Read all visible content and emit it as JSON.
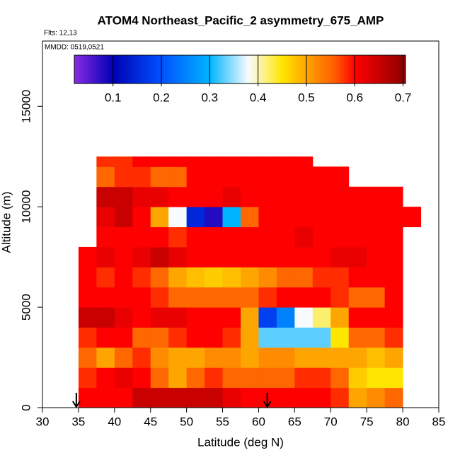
{
  "chart_data": {
    "type": "heatmap",
    "title": "ATOM4 Northeast_Pacific_2 asymmetry_675_AMP",
    "flights_label": "Flts: 12,13",
    "dates_label": "MMDD: 0519,0521",
    "x_label": "Latitude (deg N)",
    "y_label": "Altitude (m)",
    "xlim": [
      30,
      85
    ],
    "ylim": [
      0,
      18250
    ],
    "xticks": [
      30,
      35,
      40,
      45,
      50,
      55,
      60,
      65,
      70,
      75,
      80,
      85
    ],
    "yticks": [
      0,
      5000,
      10000,
      15000
    ],
    "x_edges": [
      35,
      37.5,
      40,
      42.5,
      45,
      47.5,
      50,
      52.5,
      55,
      57.5,
      60,
      62.5,
      65,
      67.5,
      70,
      72.5,
      75,
      77.5,
      80,
      82.5
    ],
    "y_edges": [
      0,
      1000,
      2000,
      3000,
      4000,
      5000,
      6000,
      7000,
      8000,
      9000,
      10000,
      11000,
      12000,
      12500
    ],
    "z": [
      [
        0.6,
        0.6,
        0.6,
        0.65,
        0.65,
        0.65,
        0.65,
        0.65,
        0.62,
        0.6,
        0.6,
        0.6,
        0.6,
        0.6,
        0.58,
        0.5,
        0.52,
        0.55,
        null
      ],
      [
        0.58,
        0.6,
        0.62,
        0.6,
        0.55,
        0.5,
        0.55,
        0.58,
        0.55,
        0.55,
        0.55,
        0.55,
        0.58,
        0.58,
        0.55,
        0.47,
        0.45,
        0.45,
        null
      ],
      [
        0.55,
        0.5,
        0.55,
        0.58,
        0.52,
        0.5,
        0.5,
        0.52,
        0.52,
        0.5,
        0.52,
        0.52,
        0.5,
        0.5,
        0.5,
        0.5,
        0.48,
        0.5,
        null
      ],
      [
        0.58,
        0.6,
        0.6,
        0.55,
        0.55,
        0.58,
        0.6,
        0.6,
        0.58,
        0.5,
        0.33,
        0.33,
        0.33,
        0.33,
        0.45,
        0.55,
        0.55,
        0.58,
        null
      ],
      [
        0.65,
        0.65,
        0.62,
        0.6,
        0.62,
        0.62,
        0.6,
        0.6,
        0.6,
        0.5,
        0.18,
        0.25,
        0.38,
        0.42,
        0.5,
        0.6,
        0.6,
        0.6,
        null
      ],
      [
        0.6,
        0.6,
        0.6,
        0.6,
        0.58,
        0.55,
        0.55,
        0.55,
        0.55,
        0.55,
        0.58,
        0.6,
        0.6,
        0.6,
        0.58,
        0.55,
        0.55,
        0.6,
        null
      ],
      [
        0.6,
        0.58,
        0.6,
        0.58,
        0.55,
        0.5,
        0.48,
        0.47,
        0.48,
        0.5,
        0.52,
        0.55,
        0.55,
        0.58,
        0.58,
        0.6,
        0.6,
        0.6,
        null
      ],
      [
        0.6,
        0.62,
        0.6,
        0.62,
        0.65,
        0.62,
        0.6,
        0.6,
        0.6,
        0.6,
        0.6,
        0.6,
        0.6,
        0.6,
        0.62,
        0.62,
        0.6,
        0.6,
        null
      ],
      [
        null,
        0.6,
        0.6,
        0.6,
        0.6,
        0.58,
        0.6,
        0.6,
        0.6,
        0.6,
        0.6,
        0.6,
        0.62,
        0.6,
        0.6,
        0.6,
        0.6,
        0.6,
        null
      ],
      [
        null,
        0.62,
        0.65,
        0.6,
        0.5,
        0.38,
        0.15,
        0.08,
        0.3,
        0.55,
        0.6,
        0.6,
        0.6,
        0.6,
        0.6,
        0.6,
        0.6,
        0.6,
        0.6
      ],
      [
        null,
        0.65,
        0.65,
        0.62,
        0.62,
        0.6,
        0.6,
        0.6,
        0.62,
        0.6,
        0.6,
        0.6,
        0.6,
        0.6,
        0.6,
        0.6,
        0.6,
        0.6,
        null
      ],
      [
        null,
        0.55,
        0.58,
        0.58,
        0.55,
        0.55,
        0.6,
        0.6,
        0.6,
        0.6,
        0.6,
        0.6,
        0.6,
        0.6,
        0.6,
        null,
        null,
        null,
        null
      ],
      [
        null,
        0.58,
        0.58,
        0.6,
        0.6,
        0.6,
        0.6,
        0.6,
        0.6,
        0.6,
        0.6,
        0.6,
        0.6,
        null,
        null,
        null,
        null,
        null,
        null
      ]
    ],
    "colorbar_lim": [
      0.02,
      0.705
    ],
    "colorbar_ticks": [
      0.1,
      0.2,
      0.3,
      0.4,
      0.5,
      0.6,
      0.7
    ],
    "colorscale": [
      {
        "value": 0.02,
        "color": "#8a2be2"
      },
      {
        "value": 0.1,
        "color": "#0000b4"
      },
      {
        "value": 0.2,
        "color": "#0050ff"
      },
      {
        "value": 0.3,
        "color": "#00b4ff"
      },
      {
        "value": 0.38,
        "color": "#f8fbff"
      },
      {
        "value": 0.45,
        "color": "#ffe600"
      },
      {
        "value": 0.5,
        "color": "#ffa500"
      },
      {
        "value": 0.56,
        "color": "#ff5a00"
      },
      {
        "value": 0.6,
        "color": "#ff0000"
      },
      {
        "value": 0.705,
        "color": "#8b0000"
      }
    ],
    "arrows": [
      34.7,
      61.2
    ]
  }
}
